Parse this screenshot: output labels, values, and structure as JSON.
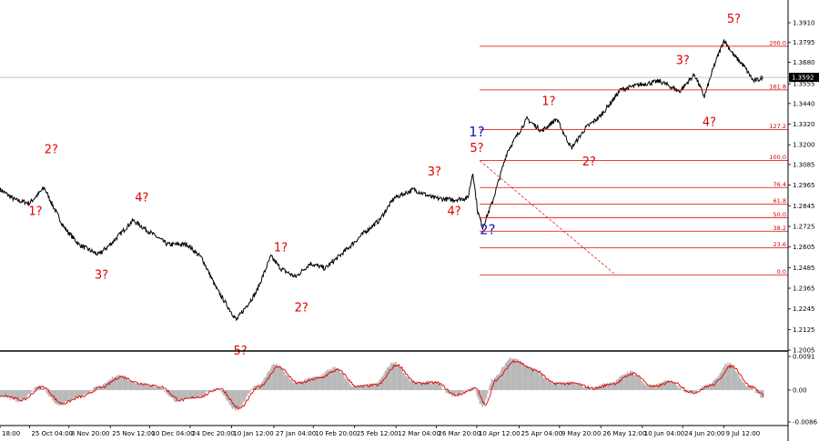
{
  "chart_data": [
    {
      "type": "line",
      "name": "price",
      "ylim": [
        1.2,
        1.4
      ],
      "y_ticks": [
        1.391,
        1.3795,
        1.368,
        1.3555,
        1.344,
        1.332,
        1.32,
        1.3085,
        1.2965,
        1.2845,
        1.2725,
        1.2605,
        1.2485,
        1.2365,
        1.2245,
        1.2125,
        1.2005
      ],
      "last_price": 1.3592,
      "x_tick_labels": [
        "18:00",
        "25 Oct 04:00",
        "8 Nov 20:00",
        "25 Nov 12:00",
        "10 Dec 04:00",
        "24 Dec 20:00",
        "10 Jan 12:00",
        "27 Jan 04:00",
        "10 Feb 20:00",
        "25 Feb 12:00",
        "12 Mar 04:00",
        "26 Mar 20:00",
        "10 Apr 12:00",
        "25 Apr 04:00",
        "9 May 20:00",
        "26 May 12:00",
        "10 Jun 04:00",
        "24 Jun 20:00",
        "9 Jul 12:00"
      ],
      "x_tick_index": [
        0,
        30,
        70,
        112,
        152,
        193,
        235,
        278,
        318,
        360,
        402,
        443,
        484,
        527,
        568,
        610,
        652,
        693,
        735
      ],
      "series": [
        {
          "x": [
            0,
            15,
            30,
            45,
            55,
            65,
            80,
            100,
            112,
            135,
            150,
            170,
            190,
            205,
            220,
            240,
            260,
            275,
            285,
            300,
            315,
            330,
            350,
            370,
            385,
            400,
            420,
            440,
            460,
            475,
            480,
            485,
            490,
            500,
            515,
            535,
            550,
            565,
            580,
            595,
            610,
            630,
            650,
            670,
            690,
            705,
            715,
            725,
            735,
            745,
            755,
            765,
            775
          ],
          "y": [
            1.294,
            1.288,
            1.286,
            1.295,
            1.283,
            1.272,
            1.262,
            1.256,
            1.262,
            1.276,
            1.27,
            1.262,
            1.262,
            1.254,
            1.236,
            1.218,
            1.234,
            1.255,
            1.248,
            1.243,
            1.251,
            1.248,
            1.258,
            1.269,
            1.276,
            1.289,
            1.294,
            1.289,
            1.288,
            1.289,
            1.304,
            1.281,
            1.272,
            1.287,
            1.316,
            1.335,
            1.328,
            1.335,
            1.318,
            1.33,
            1.337,
            1.352,
            1.355,
            1.357,
            1.351,
            1.361,
            1.348,
            1.366,
            1.381,
            1.372,
            1.366,
            1.357,
            1.359
          ]
        }
      ],
      "fib_levels": [
        {
          "label": "200.0",
          "value": 1.3773
        },
        {
          "label": "161.8",
          "value": 1.3519
        },
        {
          "label": "127.2",
          "value": 1.3289
        },
        {
          "label": "100.0",
          "value": 1.3108
        },
        {
          "label": "76.4",
          "value": 1.2951
        },
        {
          "label": "61.8",
          "value": 1.2854
        },
        {
          "label": "50.0",
          "value": 1.2776
        },
        {
          "label": "38.2",
          "value": 1.2697
        },
        {
          "label": "23.6",
          "value": 1.26
        },
        {
          "label": "0.0",
          "value": 1.2443
        }
      ],
      "wave_labels_red": [
        {
          "text": "2?",
          "x": 52,
          "y": 1.315
        },
        {
          "text": "1?",
          "x": 36,
          "y": 1.279
        },
        {
          "text": "3?",
          "x": 103,
          "y": 1.242
        },
        {
          "text": "4?",
          "x": 144,
          "y": 1.287
        },
        {
          "text": "5?",
          "x": 244,
          "y": 1.198
        },
        {
          "text": "1?",
          "x": 285,
          "y": 1.258
        },
        {
          "text": "2?",
          "x": 306,
          "y": 1.223
        },
        {
          "text": "3?",
          "x": 441,
          "y": 1.302
        },
        {
          "text": "4?",
          "x": 461,
          "y": 1.279
        },
        {
          "text": "5?",
          "x": 484,
          "y": 1.316
        },
        {
          "text": "1?",
          "x": 557,
          "y": 1.343
        },
        {
          "text": "2?",
          "x": 598,
          "y": 1.308
        },
        {
          "text": "3?",
          "x": 693,
          "y": 1.367
        },
        {
          "text": "4?",
          "x": 720,
          "y": 1.331
        },
        {
          "text": "5?",
          "x": 745,
          "y": 1.391
        }
      ],
      "wave_labels_blue": [
        {
          "text": "1?",
          "x": 484,
          "y": 1.325
        },
        {
          "text": "2?",
          "x": 495,
          "y": 1.268
        }
      ]
    },
    {
      "type": "area",
      "name": "oscillator",
      "ylim": [
        -0.0086,
        0.0091
      ],
      "y_ticks": [
        0.0091,
        0.0,
        -0.0086
      ],
      "series": [
        {
          "name": "histogram",
          "x": [
            0,
            20,
            40,
            60,
            80,
            100,
            120,
            140,
            160,
            180,
            200,
            220,
            240,
            260,
            280,
            300,
            320,
            340,
            360,
            380,
            400,
            420,
            440,
            460,
            480,
            490,
            500,
            520,
            540,
            560,
            580,
            600,
            620,
            640,
            660,
            680,
            700,
            720,
            740,
            760,
            775
          ],
          "y": [
            -0.0015,
            -0.003,
            0.001,
            -0.004,
            -0.002,
            0.0008,
            0.004,
            0.002,
            0.001,
            -0.003,
            -0.002,
            0.0005,
            -0.0055,
            0.001,
            0.007,
            0.002,
            0.0035,
            0.006,
            0.001,
            0.0015,
            0.0075,
            0.002,
            0.0022,
            -0.0015,
            0.0005,
            -0.0045,
            0.003,
            0.0088,
            0.006,
            0.002,
            0.002,
            0.0005,
            0.002,
            0.005,
            0.001,
            0.0025,
            -0.0008,
            0.0015,
            0.0072,
            0.001,
            -0.002
          ]
        }
      ]
    }
  ]
}
